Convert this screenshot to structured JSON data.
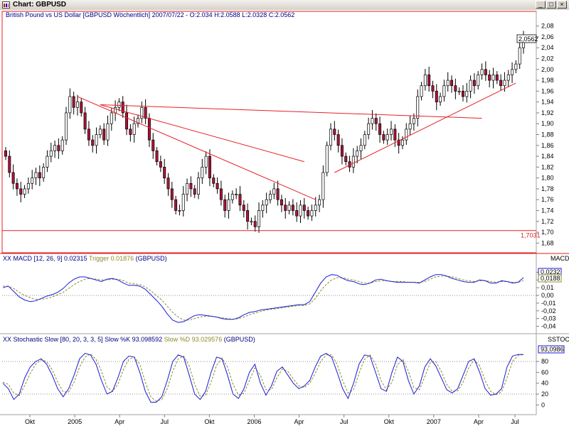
{
  "window": {
    "title": "Chart: GBPUSD"
  },
  "chart_data": [
    {
      "type": "candlestick",
      "title": "British Pound vs US Dollar [GBPUSD  Wöchentlich] 2007/07/22 - O:2.034 H:2.0588 L:2.0328 C:2.0562",
      "y_ticks": [
        "2,08",
        "2,06",
        "2,04",
        "2,02",
        "2,00",
        "1,98",
        "1,96",
        "1,94",
        "1,92",
        "1,90",
        "1,88",
        "1,86",
        "1,84",
        "1,82",
        "1,80",
        "1,78",
        "1,76",
        "1,74",
        "1,72",
        "1,70",
        "1,68"
      ],
      "ylim": [
        1.67,
        2.09
      ],
      "last_value_label": "2,0562",
      "support_label": "1,7031",
      "support_level": 1.7031,
      "colors": {
        "up": "#ffffff",
        "down": "#b0133a",
        "trendline": "#e8202a"
      },
      "x_ticks": [
        "Okt",
        "2005",
        "Apr",
        "Jul",
        "Okt",
        "2006",
        "Apr",
        "Jul",
        "Okt",
        "2007",
        "Apr",
        "Jul"
      ],
      "closes": [
        1.84,
        1.81,
        1.79,
        1.78,
        1.77,
        1.78,
        1.79,
        1.8,
        1.81,
        1.8,
        1.82,
        1.84,
        1.85,
        1.86,
        1.85,
        1.87,
        1.92,
        1.95,
        1.93,
        1.94,
        1.92,
        1.89,
        1.87,
        1.86,
        1.88,
        1.89,
        1.87,
        1.9,
        1.92,
        1.93,
        1.94,
        1.92,
        1.89,
        1.88,
        1.9,
        1.91,
        1.93,
        1.91,
        1.87,
        1.85,
        1.83,
        1.82,
        1.8,
        1.78,
        1.76,
        1.74,
        1.74,
        1.77,
        1.79,
        1.78,
        1.77,
        1.8,
        1.82,
        1.84,
        1.8,
        1.79,
        1.78,
        1.76,
        1.74,
        1.76,
        1.77,
        1.77,
        1.75,
        1.74,
        1.72,
        1.72,
        1.71,
        1.74,
        1.75,
        1.76,
        1.77,
        1.78,
        1.76,
        1.75,
        1.74,
        1.75,
        1.74,
        1.73,
        1.75,
        1.74,
        1.73,
        1.74,
        1.75,
        1.76,
        1.81,
        1.86,
        1.89,
        1.88,
        1.86,
        1.84,
        1.83,
        1.82,
        1.84,
        1.85,
        1.86,
        1.88,
        1.9,
        1.91,
        1.9,
        1.88,
        1.87,
        1.88,
        1.89,
        1.87,
        1.86,
        1.87,
        1.89,
        1.9,
        1.91,
        1.95,
        1.97,
        1.99,
        1.97,
        1.96,
        1.94,
        1.95,
        1.97,
        1.98,
        1.97,
        1.96,
        1.96,
        1.95,
        1.96,
        1.98,
        1.97,
        1.99,
        2.0,
        1.99,
        1.98,
        1.99,
        1.98,
        1.97,
        1.98,
        1.99,
        2.0,
        2.01,
        2.04,
        2.056
      ],
      "trendlines": [
        {
          "from": [
            19,
            1.95
          ],
          "to": [
            82,
            1.76
          ]
        },
        {
          "from": [
            25,
            1.935
          ],
          "to": [
            79,
            1.83
          ]
        },
        {
          "from": [
            25,
            1.935
          ],
          "to": [
            126,
            1.91
          ]
        },
        {
          "from": [
            87,
            1.81
          ],
          "to": [
            135,
            1.975
          ]
        }
      ]
    },
    {
      "type": "line",
      "title": "XX MACD [12, 26, 9] 0.02315 Trigger 0.01876 (GBPUSD)",
      "title_parts": {
        "main": "XX MACD [12, 26, 9] 0.02315 ",
        "trigger": "Trigger 0.01876",
        "tail": " (GBPUSD)"
      },
      "side_label": "MACD",
      "y_ticks": [
        "0,03",
        "0,02",
        "0,01",
        "0,00",
        "-0,01",
        "-0,02",
        "-0,03",
        "-0,04"
      ],
      "ylim": [
        -0.045,
        0.035
      ],
      "value_labels": [
        "0,0232",
        "0,0188"
      ],
      "series": [
        {
          "name": "MACD",
          "color": "#1a1ad6",
          "values": [
            0.01,
            0.012,
            0.005,
            -0.002,
            -0.006,
            -0.008,
            -0.007,
            -0.004,
            -0.001,
            0.001,
            0.004,
            0.009,
            0.016,
            0.021,
            0.024,
            0.024,
            0.022,
            0.02,
            0.018,
            0.021,
            0.022,
            0.02,
            0.016,
            0.013,
            0.013,
            0.012,
            0.008,
            0.001,
            -0.006,
            -0.014,
            -0.024,
            -0.032,
            -0.035,
            -0.034,
            -0.03,
            -0.026,
            -0.025,
            -0.026,
            -0.027,
            -0.028,
            -0.03,
            -0.031,
            -0.031,
            -0.029,
            -0.025,
            -0.022,
            -0.021,
            -0.019,
            -0.018,
            -0.017,
            -0.016,
            -0.015,
            -0.014,
            -0.013,
            -0.012,
            -0.012,
            -0.008,
            0.004,
            0.016,
            0.024,
            0.027,
            0.026,
            0.022,
            0.019,
            0.018,
            0.015,
            0.014,
            0.016,
            0.02,
            0.021,
            0.019,
            0.018,
            0.017,
            0.017,
            0.017,
            0.017,
            0.016,
            0.02,
            0.024,
            0.027,
            0.027,
            0.025,
            0.022,
            0.02,
            0.018,
            0.017,
            0.017,
            0.02,
            0.019,
            0.016,
            0.016,
            0.019,
            0.018,
            0.016,
            0.017,
            0.023
          ]
        },
        {
          "name": "Trigger",
          "color": "#8c8c2a",
          "values": [
            0.012,
            0.012,
            0.009,
            0.004,
            0.0,
            -0.003,
            -0.005,
            -0.005,
            -0.004,
            -0.002,
            0.001,
            0.004,
            0.009,
            0.014,
            0.018,
            0.021,
            0.022,
            0.021,
            0.02,
            0.02,
            0.021,
            0.021,
            0.019,
            0.016,
            0.015,
            0.014,
            0.011,
            0.006,
            0.0,
            -0.006,
            -0.014,
            -0.022,
            -0.028,
            -0.032,
            -0.032,
            -0.03,
            -0.028,
            -0.027,
            -0.027,
            -0.028,
            -0.029,
            -0.03,
            -0.031,
            -0.03,
            -0.028,
            -0.025,
            -0.023,
            -0.021,
            -0.019,
            -0.018,
            -0.017,
            -0.016,
            -0.015,
            -0.014,
            -0.013,
            -0.013,
            -0.011,
            -0.004,
            0.006,
            0.014,
            0.02,
            0.023,
            0.023,
            0.021,
            0.02,
            0.018,
            0.016,
            0.016,
            0.018,
            0.019,
            0.019,
            0.018,
            0.018,
            0.018,
            0.017,
            0.017,
            0.017,
            0.018,
            0.021,
            0.024,
            0.025,
            0.025,
            0.024,
            0.022,
            0.02,
            0.019,
            0.018,
            0.019,
            0.019,
            0.018,
            0.017,
            0.018,
            0.018,
            0.017,
            0.017,
            0.019
          ]
        }
      ]
    },
    {
      "type": "line",
      "title": "XX Stochastic Slow [80, 20, 3, 3, 5] Slow %K 93.098592 Slow %D 93.029576 (GBPUSD)",
      "title_parts": {
        "main": "XX Stochastic Slow [80, 20, 3, 3, 5] Slow %K 93.098592 ",
        "d": "Slow %D 93.029576",
        "tail": " (GBPUSD)"
      },
      "side_label": "SSTOC",
      "y_ticks": [
        "80",
        "60",
        "40",
        "20",
        "0"
      ],
      "ylim": [
        -10,
        105
      ],
      "value_label": "93,0986",
      "levels": [
        80,
        20
      ],
      "series": [
        {
          "name": "Slow %K",
          "color": "#1a1ad6",
          "values": [
            40,
            30,
            10,
            20,
            50,
            70,
            80,
            85,
            75,
            55,
            30,
            15,
            30,
            55,
            85,
            95,
            92,
            75,
            45,
            20,
            25,
            50,
            80,
            90,
            88,
            60,
            25,
            5,
            5,
            15,
            45,
            80,
            92,
            88,
            55,
            20,
            10,
            25,
            60,
            88,
            85,
            55,
            20,
            12,
            30,
            60,
            75,
            40,
            18,
            35,
            62,
            70,
            55,
            40,
            30,
            35,
            45,
            70,
            90,
            95,
            88,
            60,
            30,
            12,
            40,
            75,
            92,
            90,
            60,
            30,
            25,
            60,
            88,
            80,
            45,
            20,
            35,
            70,
            85,
            72,
            50,
            28,
            22,
            30,
            55,
            80,
            85,
            60,
            30,
            18,
            20,
            30,
            70,
            90,
            93,
            93
          ]
        },
        {
          "name": "Slow %D",
          "color": "#8c8c2a",
          "values": [
            42,
            38,
            22,
            17,
            36,
            58,
            75,
            83,
            80,
            65,
            42,
            24,
            24,
            42,
            70,
            88,
            94,
            84,
            62,
            33,
            25,
            38,
            65,
            84,
            88,
            75,
            42,
            15,
            7,
            10,
            30,
            62,
            85,
            90,
            72,
            38,
            16,
            18,
            42,
            73,
            86,
            70,
            38,
            18,
            22,
            45,
            68,
            55,
            28,
            28,
            50,
            66,
            62,
            48,
            35,
            32,
            40,
            58,
            80,
            92,
            92,
            75,
            45,
            22,
            28,
            58,
            84,
            92,
            76,
            45,
            28,
            42,
            74,
            84,
            62,
            32,
            28,
            52,
            78,
            80,
            62,
            38,
            25,
            26,
            42,
            68,
            83,
            72,
            45,
            25,
            19,
            24,
            50,
            80,
            91,
            93
          ]
        }
      ]
    }
  ]
}
